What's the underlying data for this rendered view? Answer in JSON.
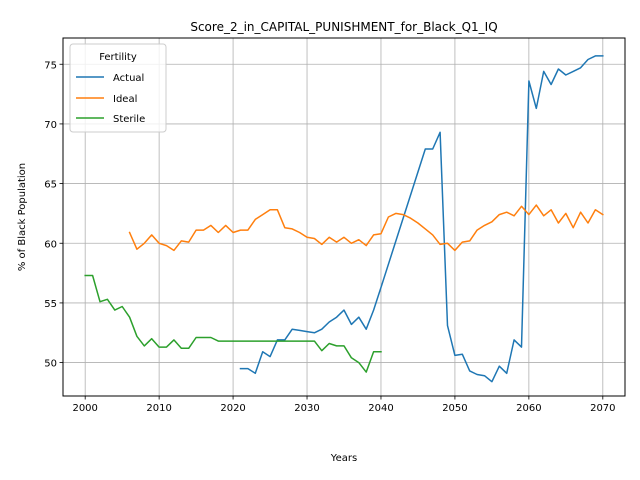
{
  "chart_data": {
    "type": "line",
    "title": "Score_2_in_CAPITAL_PUNISHMENT_for_Black_Q1_IQ",
    "xlabel": "Years",
    "ylabel": "% of Black Population",
    "xlim": [
      1997,
      2073
    ],
    "ylim": [
      47.2,
      77.2
    ],
    "xticks": [
      2000,
      2010,
      2020,
      2030,
      2040,
      2050,
      2060,
      2070
    ],
    "yticks": [
      50,
      55,
      60,
      65,
      70,
      75
    ],
    "grid": true,
    "legend": {
      "title": "Fertility",
      "placement": "upper-left"
    },
    "series": [
      {
        "name": "Actual",
        "color": "#1f77b4",
        "x": [
          2021,
          2022,
          2023,
          2024,
          2025,
          2026,
          2027,
          2028,
          2029,
          2030,
          2031,
          2032,
          2033,
          2034,
          2035,
          2036,
          2037,
          2038,
          2039,
          2040,
          2046,
          2047,
          2048,
          2049,
          2050,
          2051,
          2052,
          2053,
          2054,
          2055,
          2056,
          2057,
          2058,
          2059,
          2060,
          2061,
          2062,
          2063,
          2064,
          2065,
          2066,
          2067,
          2068,
          2069,
          2070
        ],
        "y": [
          49.5,
          49.5,
          49.1,
          50.9,
          50.5,
          51.9,
          51.9,
          52.8,
          52.7,
          52.6,
          52.5,
          52.8,
          53.4,
          53.8,
          54.4,
          53.2,
          53.8,
          52.8,
          54.4,
          56.3,
          67.9,
          67.9,
          69.3,
          53.1,
          50.6,
          50.7,
          49.3,
          49.0,
          48.9,
          48.4,
          49.7,
          49.1,
          51.9,
          51.3,
          73.6,
          71.3,
          74.4,
          73.3,
          74.6,
          74.1,
          74.4,
          74.7,
          75.4,
          75.7,
          75.7
        ]
      },
      {
        "name": "Ideal",
        "color": "#ff7f0e",
        "x": [
          2006,
          2007,
          2008,
          2009,
          2010,
          2011,
          2012,
          2013,
          2014,
          2015,
          2016,
          2017,
          2018,
          2019,
          2020,
          2021,
          2022,
          2023,
          2024,
          2025,
          2026,
          2027,
          2028,
          2029,
          2030,
          2031,
          2032,
          2033,
          2034,
          2035,
          2036,
          2037,
          2038,
          2039,
          2040,
          2041,
          2042,
          2043,
          2044,
          2045,
          2046,
          2047,
          2048,
          2049,
          2050,
          2051,
          2052,
          2053,
          2054,
          2055,
          2056,
          2057,
          2058,
          2059,
          2060,
          2061,
          2062,
          2063,
          2064,
          2065,
          2066,
          2067,
          2068,
          2069,
          2070
        ],
        "y": [
          60.9,
          59.5,
          60.0,
          60.7,
          60.0,
          59.8,
          59.4,
          60.2,
          60.1,
          61.1,
          61.1,
          61.5,
          60.9,
          61.5,
          60.9,
          61.1,
          61.1,
          62.0,
          62.4,
          62.8,
          62.8,
          61.3,
          61.2,
          60.9,
          60.5,
          60.4,
          59.9,
          60.5,
          60.1,
          60.5,
          60.0,
          60.3,
          59.8,
          60.7,
          60.8,
          62.2,
          62.5,
          62.4,
          62.1,
          61.7,
          61.2,
          60.7,
          59.9,
          60.0,
          59.4,
          60.1,
          60.2,
          61.1,
          61.5,
          61.8,
          62.4,
          62.6,
          62.3,
          63.1,
          62.4,
          63.2,
          62.3,
          62.8,
          61.7,
          62.5,
          61.3,
          62.6,
          61.7,
          62.8,
          62.4
        ]
      },
      {
        "name": "Sterile",
        "color": "#2ca02c",
        "x": [
          2000,
          2001,
          2002,
          2003,
          2004,
          2005,
          2006,
          2007,
          2008,
          2009,
          2010,
          2011,
          2012,
          2013,
          2014,
          2015,
          2016,
          2017,
          2018,
          2019,
          2020,
          2021,
          2022,
          2023,
          2024,
          2025,
          2026,
          2027,
          2028,
          2029,
          2030,
          2031,
          2032,
          2033,
          2034,
          2035,
          2036,
          2037,
          2038,
          2039,
          2040
        ],
        "y": [
          57.3,
          57.3,
          55.1,
          55.3,
          54.4,
          54.7,
          53.8,
          52.2,
          51.4,
          52.0,
          51.3,
          51.3,
          51.9,
          51.2,
          51.2,
          52.1,
          52.1,
          52.1,
          51.8,
          51.8,
          51.8,
          51.8,
          51.8,
          51.8,
          51.8,
          51.8,
          51.8,
          51.8,
          51.8,
          51.8,
          51.8,
          51.8,
          51.0,
          51.6,
          51.4,
          51.4,
          50.4,
          50.0,
          49.2,
          50.9,
          50.9
        ]
      }
    ]
  }
}
